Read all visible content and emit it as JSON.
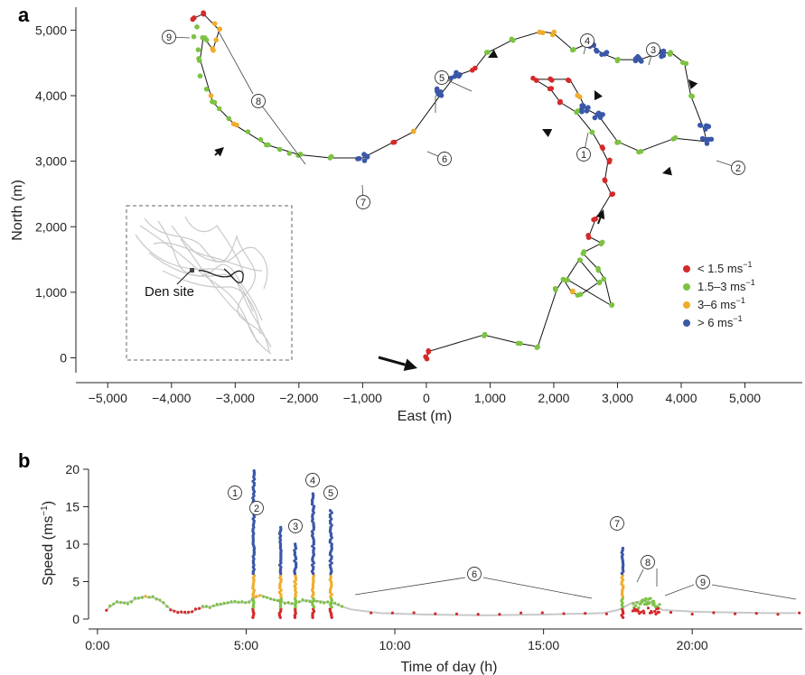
{
  "colors": {
    "slow": "#d42a2a",
    "walk": "#7cc243",
    "trot": "#f0ad2b",
    "fast": "#3a57a8",
    "path": "#111111",
    "gap": "#c8c8c8",
    "inset_track": "#c9c9c9"
  },
  "figure": {
    "panel_a_letter": "a",
    "panel_b_letter": "b"
  },
  "chart_data": [
    {
      "type": "scatter",
      "panel": "a",
      "xlabel": "East (m)",
      "ylabel": "North (m)",
      "xlim": [
        -5500,
        5900
      ],
      "ylim": [
        -200,
        5350
      ],
      "xticks": [
        -5000,
        -4000,
        -3000,
        -2000,
        -1000,
        0,
        1000,
        2000,
        3000,
        4000,
        5000
      ],
      "xtick_labels": [
        "−5,000",
        "−4,000",
        "−3,000",
        "−2,000",
        "−1,000",
        "0",
        "1,000",
        "2,000",
        "3,000",
        "4,000",
        "5,000"
      ],
      "yticks": [
        0,
        1000,
        2000,
        3000,
        4000,
        5000
      ],
      "ytick_labels": [
        "0",
        "1,000",
        "2,000",
        "3,000",
        "4,000",
        "5,000"
      ],
      "grid": false,
      "legend_position": "right",
      "legend": [
        {
          "label": "< 1.5 ms",
          "sup": "−1",
          "color": "#d42a2a"
        },
        {
          "label": "1.5–3 ms",
          "sup": "−1",
          "color": "#7cc243"
        },
        {
          "label": "3–6 ms",
          "sup": "−1",
          "color": "#f0ad2b"
        },
        {
          "label": "> 6 ms",
          "sup": "−1",
          "color": "#3a57a8"
        }
      ],
      "track": [
        [
          0,
          0,
          "r"
        ],
        [
          50,
          100,
          "r"
        ],
        [
          900,
          350,
          "g"
        ],
        [
          1450,
          220,
          "g"
        ],
        [
          1750,
          170,
          "g"
        ],
        [
          2050,
          1050,
          "g"
        ],
        [
          2150,
          1200,
          "g"
        ],
        [
          2280,
          1000,
          "o"
        ],
        [
          2400,
          950,
          "g"
        ],
        [
          2700,
          1150,
          "g"
        ],
        [
          2400,
          1500,
          "g"
        ],
        [
          2200,
          1200,
          "g"
        ],
        [
          2900,
          800,
          "g"
        ],
        [
          2800,
          1200,
          "g"
        ],
        [
          2700,
          1350,
          "g"
        ],
        [
          2450,
          1600,
          "g"
        ],
        [
          2750,
          1750,
          "g"
        ],
        [
          2550,
          1850,
          "r"
        ],
        [
          2650,
          2100,
          "r"
        ],
        [
          2900,
          2500,
          "r"
        ],
        [
          2800,
          2700,
          "r"
        ],
        [
          2850,
          3000,
          "r"
        ],
        [
          2750,
          3200,
          "r"
        ],
        [
          2600,
          3450,
          "g"
        ],
        [
          2350,
          3750,
          "g"
        ],
        [
          2100,
          3900,
          "r"
        ],
        [
          1950,
          4100,
          "r"
        ],
        [
          1700,
          4250,
          "r"
        ],
        [
          1950,
          4250,
          "r"
        ],
        [
          2250,
          4250,
          "r"
        ],
        [
          2400,
          4000,
          "o"
        ],
        [
          2500,
          3800,
          "b"
        ],
        [
          2700,
          3700,
          "b"
        ],
        [
          3000,
          3300,
          "g"
        ],
        [
          3350,
          3150,
          "g"
        ],
        [
          3900,
          3350,
          "g"
        ],
        [
          4400,
          3300,
          "b"
        ],
        [
          4350,
          3500,
          "b"
        ],
        [
          4150,
          4000,
          "g"
        ],
        [
          4050,
          4500,
          "g"
        ],
        [
          3850,
          4650,
          "g"
        ],
        [
          3650,
          4650,
          "b"
        ],
        [
          3350,
          4550,
          "b"
        ],
        [
          3000,
          4550,
          "g"
        ],
        [
          2750,
          4650,
          "b"
        ],
        [
          2550,
          4800,
          "b"
        ],
        [
          2300,
          4700,
          "g"
        ],
        [
          2000,
          4950,
          "o"
        ],
        [
          1800,
          4980,
          "o"
        ],
        [
          1350,
          4850,
          "g"
        ],
        [
          950,
          4650,
          "g"
        ],
        [
          750,
          4400,
          "r"
        ],
        [
          450,
          4300,
          "b"
        ],
        [
          250,
          4050,
          "b"
        ],
        [
          -200,
          3450,
          "o"
        ],
        [
          -500,
          3300,
          "r"
        ],
        [
          -1000,
          3050,
          "b"
        ],
        [
          -1500,
          3050,
          "g"
        ],
        [
          -2000,
          3100,
          "g"
        ],
        [
          -2500,
          3250,
          "g"
        ],
        [
          -3000,
          3550,
          "o"
        ],
        [
          -3350,
          3900,
          "g"
        ],
        [
          -3550,
          4550,
          "g"
        ],
        [
          -3500,
          4900,
          "g"
        ],
        [
          -3350,
          4700,
          "o"
        ],
        [
          -3250,
          5000,
          "o"
        ],
        [
          -3500,
          5250,
          "r"
        ],
        [
          -3650,
          5180,
          "r"
        ]
      ],
      "numbered_markers": [
        "1",
        "2",
        "3",
        "4",
        "5",
        "6",
        "7",
        "8",
        "9"
      ],
      "inset": {
        "label": "Den site"
      }
    },
    {
      "type": "scatter",
      "panel": "b",
      "xlabel": "Time of day (h)",
      "ylabel": "Speed (ms",
      "ylabel_sup": "−1",
      "ylabel_close": ")",
      "xlim": [
        -0.3,
        23.7
      ],
      "ylim": [
        0,
        20
      ],
      "xticks": [
        0,
        5,
        10,
        15,
        20
      ],
      "xtick_labels": [
        "0:00",
        "5:00",
        "10:00",
        "15:00",
        "20:00"
      ],
      "yticks": [
        0,
        5,
        10,
        15,
        20
      ],
      "ytick_labels": [
        "0",
        "5",
        "10",
        "15",
        "20"
      ],
      "grid": false,
      "baseline": [
        [
          0.3,
          1.2
        ],
        [
          0.6,
          2.2
        ],
        [
          1.0,
          2.2
        ],
        [
          1.5,
          3.0
        ],
        [
          2.0,
          2.8
        ],
        [
          2.5,
          1.2
        ],
        [
          3.0,
          0.7
        ],
        [
          3.5,
          1.5
        ],
        [
          4.0,
          1.8
        ],
        [
          4.5,
          2.2
        ],
        [
          5.0,
          2.2
        ],
        [
          5.5,
          3.2
        ],
        [
          6.0,
          2.5
        ],
        [
          6.5,
          2.0
        ],
        [
          7.0,
          2.5
        ],
        [
          7.5,
          2.4
        ],
        [
          8.0,
          2.0
        ],
        [
          8.5,
          1.3
        ],
        [
          9.5,
          0.8
        ],
        [
          11.0,
          0.6
        ],
        [
          13.0,
          0.5
        ],
        [
          15.0,
          0.6
        ],
        [
          17.0,
          0.8
        ],
        [
          17.5,
          1.2
        ],
        [
          18.0,
          2.2
        ],
        [
          18.5,
          2.5
        ],
        [
          19.0,
          1.2
        ],
        [
          20.0,
          1.0
        ],
        [
          21.0,
          0.9
        ],
        [
          22.5,
          0.8
        ],
        [
          23.5,
          0.8
        ]
      ],
      "spikes": [
        {
          "t": 5.25,
          "peak": 19.8,
          "label": "1"
        },
        {
          "t": 6.15,
          "peak": 12.5,
          "label": "2"
        },
        {
          "t": 6.65,
          "peak": 10.2,
          "label": "3"
        },
        {
          "t": 7.25,
          "peak": 16.8,
          "label": "4"
        },
        {
          "t": 7.85,
          "peak": 14.5,
          "label": "5"
        },
        {
          "t": 17.65,
          "peak": 9.7,
          "label": "7"
        }
      ],
      "burst_region": {
        "t_start": 18.0,
        "t_end": 18.9,
        "max": 4.5
      },
      "leaders_labels": [
        "6",
        "8",
        "9"
      ]
    }
  ]
}
